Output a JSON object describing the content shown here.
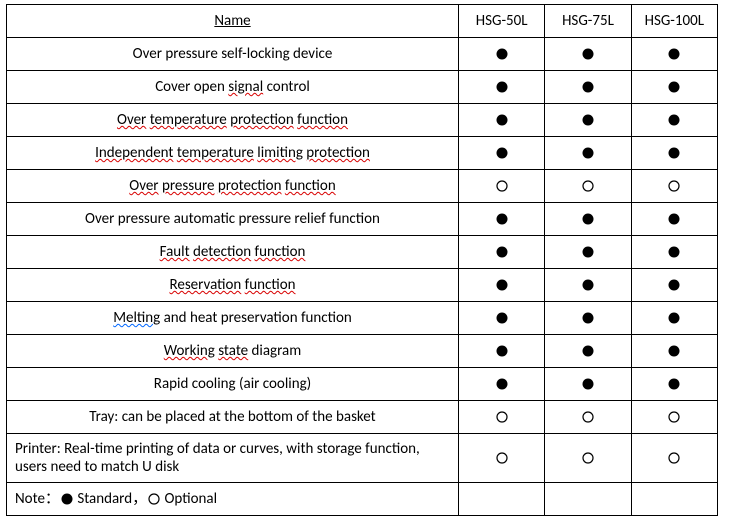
{
  "header": {
    "name_label": "Name",
    "models": [
      "HSG-50L",
      "HSG-75L",
      "HSG-100L"
    ]
  },
  "symbols": {
    "filled": "●",
    "hollow": "○"
  },
  "colors": {
    "filled_fill": "#000000",
    "hollow_stroke": "#000000",
    "background": "#ffffff",
    "border": "#000000",
    "text": "#000000",
    "spell_red": "#d80000",
    "spell_blue": "#0066ff"
  },
  "rows": [
    {
      "html": "Over pressure self-locking device",
      "align": "center",
      "values": [
        "filled",
        "filled",
        "filled"
      ]
    },
    {
      "html": "Cover open <span class=\"spell-red\">signal</span> control",
      "align": "center",
      "values": [
        "filled",
        "filled",
        "filled"
      ]
    },
    {
      "html": "<span class=\"spell-red\">Over</span> <span class=\"spell-red\">temperature</span> <span class=\"spell-red\">protection</span> <span class=\"spell-red\">function</span>",
      "align": "center",
      "values": [
        "filled",
        "filled",
        "filled"
      ]
    },
    {
      "html": "<span class=\"spell-red\">Independent</span> <span class=\"spell-red\">temperature</span> <span class=\"spell-red\">limiting</span> <span class=\"spell-red\">protection</span>",
      "align": "center",
      "values": [
        "filled",
        "filled",
        "filled"
      ]
    },
    {
      "html": "<span class=\"spell-red\">Over</span> <span class=\"spell-red\">pressure</span> <span class=\"spell-red\">protection</span> <span class=\"spell-red\">function</span>",
      "align": "center",
      "values": [
        "hollow",
        "hollow",
        "hollow"
      ]
    },
    {
      "html": "Over pressure automatic pressure relief function",
      "align": "center",
      "values": [
        "filled",
        "filled",
        "filled"
      ]
    },
    {
      "html": "<span class=\"spell-red\">Fault</span> <span class=\"spell-red\">detection</span> <span class=\"spell-red\">function</span>",
      "align": "center",
      "values": [
        "filled",
        "filled",
        "filled"
      ]
    },
    {
      "html": "<span class=\"spell-red\">Reservation</span> <span class=\"spell-red\">function</span>",
      "align": "center",
      "values": [
        "filled",
        "filled",
        "filled"
      ]
    },
    {
      "html": "<span class=\"spell-blue\">Melting</span> and heat preservation function",
      "align": "center",
      "values": [
        "filled",
        "filled",
        "filled"
      ]
    },
    {
      "html": "<span class=\"spell-red\">Working</span> <span class=\"spell-red\">state</span> diagram",
      "align": "center",
      "values": [
        "filled",
        "filled",
        "filled"
      ]
    },
    {
      "html": "Rapid cooling (air cooling)",
      "align": "center",
      "values": [
        "filled",
        "filled",
        "filled"
      ]
    },
    {
      "html": "Tray: can be placed at the bottom of the basket",
      "align": "center",
      "values": [
        "hollow",
        "hollow",
        "hollow"
      ]
    },
    {
      "html": "Printer: Real-time printing of data or curves, with storage function, users need to match U disk",
      "align": "left",
      "values": [
        "hollow",
        "hollow",
        "hollow"
      ]
    }
  ],
  "note": {
    "prefix": "Note：",
    "standard_label": " Standard，",
    "optional_label": " Optional"
  }
}
